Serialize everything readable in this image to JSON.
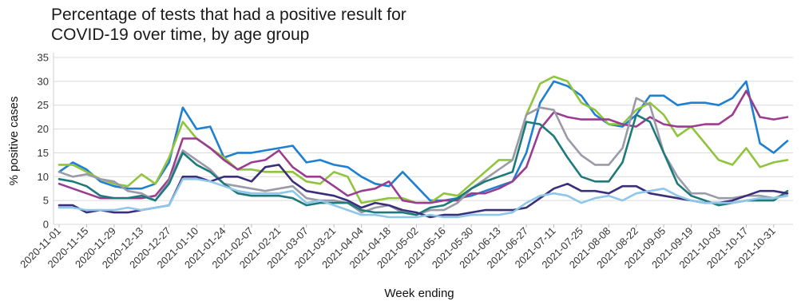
{
  "chart_data": {
    "type": "line",
    "title": "Percentage of tests that had a positive result for COVID-19 over time, by age group",
    "title_lines": [
      "Percentage of tests that had a positive result for",
      "COVID-19 over time, by age group"
    ],
    "xlabel": "Week ending",
    "ylabel": "% positive cases",
    "ylim": [
      0,
      35
    ],
    "yticks": [
      0,
      5,
      10,
      15,
      20,
      25,
      30,
      35
    ],
    "grid": "horizontal",
    "x": [
      "2020-11-01",
      "2020-11-08",
      "2020-11-15",
      "2020-11-22",
      "2020-11-29",
      "2020-12-06",
      "2020-12-13",
      "2020-12-20",
      "2020-12-27",
      "2021-01-03",
      "2021-01-10",
      "2021-01-17",
      "2021-01-24",
      "2021-01-31",
      "2021-02-07",
      "2021-02-14",
      "2021-02-21",
      "2021-02-28",
      "2021-03-07",
      "2021-03-14",
      "2021-03-21",
      "2021-03-28",
      "2021-04-04",
      "2021-04-11",
      "2021-04-18",
      "2021-04-25",
      "2021-05-02",
      "2021-05-09",
      "2021-05-16",
      "2021-05-23",
      "2021-05-30",
      "2021-06-06",
      "2021-06-13",
      "2021-06-20",
      "2021-06-27",
      "2021-07-04",
      "2021-07-11",
      "2021-07-18",
      "2021-07-25",
      "2021-08-01",
      "2021-08-08",
      "2021-08-15",
      "2021-08-22",
      "2021-08-29",
      "2021-09-05",
      "2021-09-12",
      "2021-09-19",
      "2021-09-26",
      "2021-10-03",
      "2021-10-10",
      "2021-10-17",
      "2021-10-24",
      "2021-10-31",
      "2021-11-07"
    ],
    "xtick_labels": [
      "2020-11-01",
      "2020-11-15",
      "2020-11-29",
      "2020-12-13",
      "2020-12-27",
      "2021-01-10",
      "2021-01-24",
      "2021-02-07",
      "2021-02-21",
      "2021-03-07",
      "2021-03-21",
      "2021-04-04",
      "2021-04-18",
      "2021-05-02",
      "2021-05-16",
      "2021-05-30",
      "2021-06-13",
      "2021-06-27",
      "2021-07-11",
      "2021-07-25",
      "2021-08-08",
      "2021-08-22",
      "2021-09-05",
      "2021-09-19",
      "2021-10-03",
      "2021-10-17",
      "2021-10-31"
    ],
    "series": [
      {
        "color": "#1f7fd0",
        "values": [
          11,
          13,
          11.5,
          9,
          8,
          7.5,
          7.5,
          8.5,
          13,
          24.5,
          20,
          20.5,
          14,
          15,
          15,
          15.5,
          16,
          16.5,
          13,
          13.5,
          12.5,
          12,
          10,
          8.5,
          8,
          11,
          8,
          5,
          5,
          5.5,
          6,
          7,
          8,
          9,
          15,
          25.5,
          30,
          29,
          27,
          23,
          21,
          20.5,
          23,
          27,
          27,
          25,
          25.5,
          25.5,
          25,
          26.5,
          30,
          17,
          15,
          17.5
        ]
      },
      {
        "color": "#8fc43c",
        "values": [
          12.5,
          12.5,
          11,
          9.5,
          8.5,
          8,
          10.5,
          8.5,
          14,
          21.5,
          18,
          16,
          14,
          11.5,
          11.5,
          11,
          11,
          11,
          9,
          8.5,
          11,
          10,
          4.5,
          5,
          5.5,
          5.5,
          4.5,
          4.5,
          6.5,
          6,
          8.5,
          11,
          13.5,
          13.5,
          23,
          29.5,
          31,
          30,
          25.5,
          24,
          21,
          21,
          24,
          25.5,
          23,
          18.5,
          20.5,
          17,
          13.5,
          12.5,
          16,
          12,
          13,
          13.5
        ]
      },
      {
        "color": "#9a3d91",
        "values": [
          8.5,
          7.5,
          6.5,
          5.5,
          5.5,
          5.5,
          5.5,
          6,
          9.5,
          18,
          18,
          16,
          13.5,
          11.5,
          13,
          13.5,
          15.5,
          12,
          10,
          10,
          8,
          6,
          7,
          7.5,
          9,
          5,
          4.5,
          4.5,
          5,
          5,
          6.5,
          6.5,
          7.5,
          9,
          12,
          20,
          23.5,
          22.5,
          22,
          22,
          22,
          21,
          20.5,
          22.5,
          21,
          20.5,
          20.5,
          21,
          21,
          23,
          28,
          22.5,
          22,
          22.5
        ]
      },
      {
        "color": "#9a9aa8",
        "values": [
          11,
          10,
          10.5,
          9.5,
          9,
          7,
          6.5,
          5,
          9,
          15.5,
          13.5,
          11.5,
          8.5,
          8,
          7.5,
          7,
          7.5,
          8,
          5.5,
          5,
          5,
          4.5,
          2.5,
          3.5,
          4,
          2.5,
          2,
          3,
          3,
          4.5,
          7.5,
          9.5,
          11.5,
          13.5,
          23,
          24.5,
          24,
          18,
          14.5,
          12.5,
          12.5,
          16,
          26.5,
          25,
          15,
          10,
          6.5,
          6.5,
          5.5,
          5.5,
          6,
          6,
          5.5,
          6.5
        ]
      },
      {
        "color": "#1e7a7a",
        "values": [
          9.5,
          9,
          8,
          6,
          5.5,
          5.5,
          6,
          5,
          8.5,
          15,
          12.5,
          11,
          8.5,
          6.5,
          6,
          6,
          6,
          5.5,
          4,
          4.5,
          4.5,
          4.5,
          3,
          2.5,
          2.5,
          2.5,
          2,
          3.5,
          4,
          5.5,
          7.5,
          9,
          10,
          11,
          21.5,
          21,
          18.5,
          14,
          10,
          9,
          9,
          13,
          23,
          21.5,
          15,
          8.5,
          6,
          5,
          4,
          4.5,
          5,
          5,
          5,
          7
        ]
      },
      {
        "color": "#3a2f7a",
        "values": [
          4,
          4,
          2.5,
          3,
          2.5,
          2.5,
          3,
          3.5,
          4,
          10,
          10,
          9,
          10,
          10,
          9,
          12,
          12.5,
          9,
          7,
          6.5,
          6,
          5,
          3.5,
          4.5,
          4,
          3,
          2.5,
          1.5,
          2,
          2,
          2.5,
          3,
          3,
          3,
          3.5,
          5.5,
          7.5,
          8.5,
          7,
          7,
          6.5,
          8,
          8,
          6.5,
          6,
          5.5,
          5,
          4.5,
          4.5,
          5,
          6,
          7,
          7,
          6.5
        ]
      },
      {
        "color": "#8ec7ea",
        "values": [
          3.5,
          3.5,
          3,
          3,
          3,
          3.5,
          3,
          3.5,
          4,
          9.5,
          9.5,
          9,
          8,
          7,
          6.5,
          6.5,
          6.5,
          7,
          4.5,
          5,
          4,
          3,
          2,
          2,
          1.5,
          1.5,
          1.5,
          2,
          1.5,
          1.5,
          2,
          2,
          2,
          2.5,
          4.5,
          6,
          6.5,
          6,
          4.5,
          5.5,
          6,
          5,
          6.5,
          7,
          7.5,
          6,
          5,
          4.5,
          4.5,
          4.5,
          5,
          5.5,
          5.5,
          6
        ]
      }
    ]
  }
}
